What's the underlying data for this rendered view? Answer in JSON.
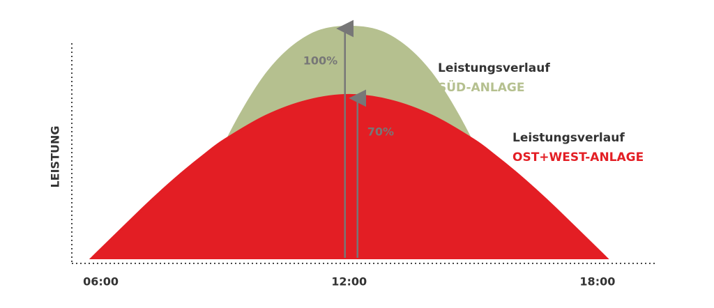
{
  "chart_data": {
    "type": "area",
    "y_label": "LEISTUNG",
    "legend_prefix": "Leistungsverlauf",
    "annotations": [
      "100%",
      "70%"
    ],
    "x": [
      5.8,
      6,
      7,
      7.5,
      8,
      8.5,
      9,
      10,
      11,
      12,
      13,
      14,
      15,
      15.5,
      16,
      16.5,
      17,
      18,
      18.2
    ],
    "xlim": [
      5.3,
      19.4
    ],
    "xticks": [
      {
        "value": 6,
        "label": "06:00"
      },
      {
        "value": 12,
        "label": "12:00"
      },
      {
        "value": 18,
        "label": "18:00"
      }
    ],
    "ylim": [
      0,
      100
    ],
    "series": [
      {
        "name": "SÜD-ANLAGE",
        "color": "#b5c08f",
        "values": [
          0,
          0,
          0,
          0,
          8,
          25,
          50,
          80,
          96,
          100,
          96,
          80,
          50,
          25,
          8,
          0,
          0,
          0,
          0
        ]
      },
      {
        "name": "OST+WEST-ANLAGE",
        "color": "#e31e24",
        "values": [
          0,
          3.5,
          20.9,
          29.2,
          37.0,
          44.2,
          50.8,
          61.1,
          67.6,
          70,
          67.6,
          61.1,
          50.8,
          44.2,
          37.0,
          29.2,
          20.9,
          3.5,
          0
        ]
      }
    ]
  }
}
